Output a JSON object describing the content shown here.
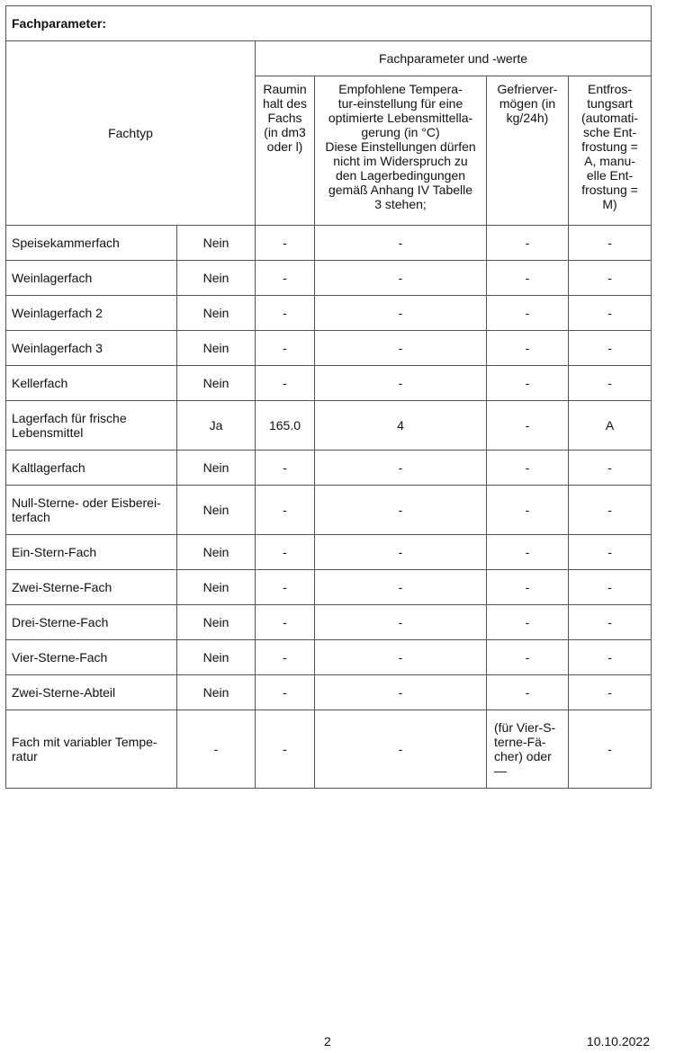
{
  "title": "Fachparameter:",
  "headers": {
    "fachtyp": "Fachtyp",
    "group": "Fachparameter und -werte",
    "volume": "Raumin\nhalt des\nFachs\n(in dm3\noder l)",
    "temperature": "Empfohlene Tempera-\ntur-einstellung für eine\noptimierte Lebensmittella-\ngerung (in °C)\nDiese Einstellungen dürfen\nnicht im Widerspruch zu\nden Lagerbedingungen\ngemäß Anhang IV Tabelle\n3 stehen;",
    "freezing": "Gefrierver-\nmögen (in\nkg/24h)",
    "defrost": "Entfros-\ntungsart\n(automati-\nsche Ent-\nfrostung =\nA, manu-\nelle Ent-\nfrostung =\nM)"
  },
  "rows": [
    {
      "name": "Speisekammerfach",
      "present": "Nein",
      "volume": "-",
      "temp": "-",
      "freezing": "-",
      "defrost": "-"
    },
    {
      "name": "Weinlagerfach",
      "present": "Nein",
      "volume": "-",
      "temp": "-",
      "freezing": "-",
      "defrost": "-"
    },
    {
      "name": "Weinlagerfach 2",
      "present": "Nein",
      "volume": "-",
      "temp": "-",
      "freezing": "-",
      "defrost": "-"
    },
    {
      "name": "Weinlagerfach 3",
      "present": "Nein",
      "volume": "-",
      "temp": "-",
      "freezing": "-",
      "defrost": "-"
    },
    {
      "name": "Kellerfach",
      "present": "Nein",
      "volume": "-",
      "temp": "-",
      "freezing": "-",
      "defrost": "-"
    },
    {
      "name": "Lagerfach für frische\nLebensmittel",
      "present": "Ja",
      "volume": "165.0",
      "temp": "4",
      "freezing": "-",
      "defrost": "A"
    },
    {
      "name": "Kaltlagerfach",
      "present": "Nein",
      "volume": "-",
      "temp": "-",
      "freezing": "-",
      "defrost": "-"
    },
    {
      "name": "Null-Sterne- oder Eisberei-\nterfach",
      "present": "Nein",
      "volume": "-",
      "temp": "-",
      "freezing": "-",
      "defrost": "-"
    },
    {
      "name": "Ein-Stern-Fach",
      "present": "Nein",
      "volume": "-",
      "temp": "-",
      "freezing": "-",
      "defrost": "-"
    },
    {
      "name": "Zwei-Sterne-Fach",
      "present": "Nein",
      "volume": "-",
      "temp": "-",
      "freezing": "-",
      "defrost": "-"
    },
    {
      "name": "Drei-Sterne-Fach",
      "present": "Nein",
      "volume": "-",
      "temp": "-",
      "freezing": "-",
      "defrost": "-"
    },
    {
      "name": "Vier-Sterne-Fach",
      "present": "Nein",
      "volume": "-",
      "temp": "-",
      "freezing": "-",
      "defrost": "-"
    },
    {
      "name": "Zwei-Sterne-Abteil",
      "present": "Nein",
      "volume": "-",
      "temp": "-",
      "freezing": "-",
      "defrost": "-"
    },
    {
      "name": "Fach mit variabler Tempe-\nratur",
      "present": "-",
      "volume": "-",
      "temp": "-",
      "freezing": " (für Vier-S-\nterne-Fä-\ncher) oder\n—",
      "defrost": "-"
    }
  ],
  "footer": {
    "page": "2",
    "date": "10.10.2022"
  }
}
